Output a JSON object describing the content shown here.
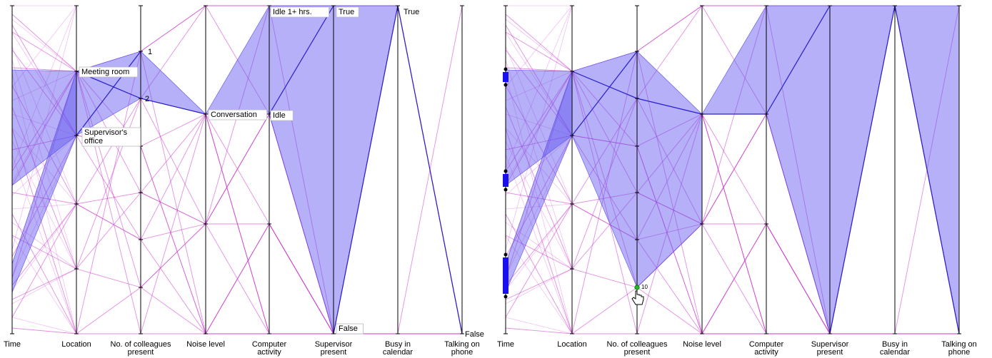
{
  "chart_data": [
    {
      "type": "parallel-coordinates",
      "panel": "left",
      "axes": [
        "Time",
        "Location",
        "No. of colleagues present",
        "Noise level",
        "Computer activity",
        "Supervisor present",
        "Busy in calendar",
        "Talking on phone"
      ],
      "axis_title_lines": [
        [
          "Time"
        ],
        [
          "Location"
        ],
        [
          "No. of colleagues",
          "present"
        ],
        [
          "Noise level"
        ],
        [
          "Computer",
          "activity"
        ],
        [
          "Supervisor",
          "present"
        ],
        [
          "Busy in",
          "calendar"
        ],
        [
          "Talking on",
          "phone"
        ]
      ],
      "value_labels": [
        {
          "axis": "Location",
          "lines": [
            "Meeting room"
          ]
        },
        {
          "axis": "Location",
          "lines": [
            "Supervisor's",
            "office"
          ]
        },
        {
          "axis": "No. of colleagues present",
          "lines": [
            "1"
          ]
        },
        {
          "axis": "No. of colleagues present",
          "lines": [
            "2"
          ]
        },
        {
          "axis": "Noise level",
          "lines": [
            "Conversation"
          ]
        },
        {
          "axis": "Computer activity",
          "lines": [
            "Idle 1+ hrs."
          ]
        },
        {
          "axis": "Computer activity",
          "lines": [
            "Idle"
          ]
        },
        {
          "axis": "Supervisor present",
          "lines": [
            "True"
          ]
        },
        {
          "axis": "Supervisor present",
          "lines": [
            "False"
          ]
        },
        {
          "axis": "Busy in calendar",
          "lines": [
            "True"
          ]
        },
        {
          "axis": "Talking on phone",
          "lines": [
            "False"
          ]
        }
      ],
      "highlight_color": "#5a50ee",
      "line_color": "#cc33cc"
    },
    {
      "type": "parallel-coordinates",
      "panel": "right",
      "axes": [
        "Time",
        "Location",
        "No. of colleagues present",
        "Noise level",
        "Computer activity",
        "Supervisor present",
        "Busy in calendar",
        "Talking on phone"
      ],
      "axis_title_lines": [
        [
          "Time"
        ],
        [
          "Location"
        ],
        [
          "No. of colleagues",
          "present"
        ],
        [
          "Noise level"
        ],
        [
          "Computer",
          "activity"
        ],
        [
          "Supervisor",
          "present"
        ],
        [
          "Busy in",
          "calendar"
        ],
        [
          "Talking on",
          "phone"
        ]
      ],
      "cursor_value_label": "10",
      "highlight_color": "#5a50ee",
      "line_color": "#cc33cc"
    }
  ],
  "icons": {
    "cursor": "hand-pointer-icon",
    "brush_handle": "range-handle-icon"
  }
}
